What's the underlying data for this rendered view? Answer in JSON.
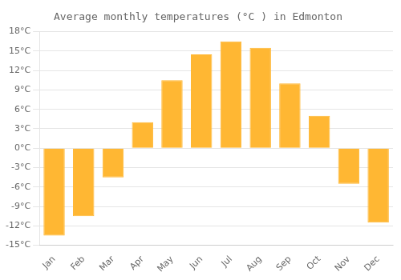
{
  "chart_data": {
    "type": "bar",
    "title": "Average monthly temperatures (°C ) in Edmonton",
    "categories": [
      "Jan",
      "Feb",
      "Mar",
      "Apr",
      "May",
      "Jun",
      "Jul",
      "Aug",
      "Sep",
      "Oct",
      "Nov",
      "Dec"
    ],
    "values": [
      -13.5,
      -10.5,
      -4.5,
      4.0,
      10.5,
      14.5,
      16.5,
      15.5,
      10.0,
      5.0,
      -5.5,
      -11.5
    ],
    "color": "#FFB733",
    "ylim": [
      -15,
      18
    ],
    "yticks": [
      {
        "value": -15,
        "label": "-15°C"
      },
      {
        "value": -12,
        "label": "-12°C"
      },
      {
        "value": -9,
        "label": "-9°C"
      },
      {
        "value": -6,
        "label": "-6°C"
      },
      {
        "value": -3,
        "label": "-3°C"
      },
      {
        "value": 0,
        "label": "0°C"
      },
      {
        "value": 3,
        "label": "3°C"
      },
      {
        "value": 6,
        "label": "6°C"
      },
      {
        "value": 9,
        "label": "9°C"
      },
      {
        "value": 12,
        "label": "12°C"
      },
      {
        "value": 15,
        "label": "15°C"
      },
      {
        "value": 18,
        "label": "18°C"
      }
    ],
    "grid": true
  }
}
